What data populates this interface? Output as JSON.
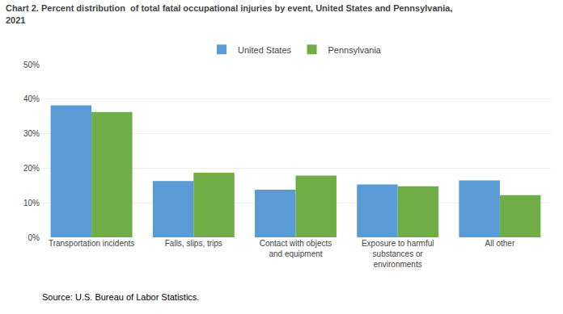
{
  "chart_data": {
    "type": "bar",
    "title": "Chart 2. Percent distribution  of total fatal occupational injuries by event, United States and Pennsylvania,\n2021",
    "categories": [
      "Transportation incidents",
      "Falls, slips, trips",
      "Contact with objects\nand equipment",
      "Exposure to harmful\nsubstances or\nenvironments",
      "All other"
    ],
    "series": [
      {
        "name": "United States",
        "color": "#5b9bd5",
        "values": [
          38.2,
          16.3,
          13.8,
          15.3,
          16.5
        ]
      },
      {
        "name": "Pennsylvania",
        "color": "#70ad47",
        "values": [
          36.3,
          18.7,
          17.9,
          14.8,
          12.2
        ]
      }
    ],
    "ylim": [
      0,
      50
    ],
    "yticks": [
      {
        "value": 0,
        "label": "0%"
      },
      {
        "value": 10,
        "label": "10%"
      },
      {
        "value": 20,
        "label": "20%"
      },
      {
        "value": 30,
        "label": "30%"
      },
      {
        "value": 40,
        "label": "40%"
      },
      {
        "value": 50,
        "label": "50%"
      }
    ],
    "grid": true,
    "legend": "top",
    "annotations": [
      "Source: U.S. Bureau of Labor Statistics."
    ]
  }
}
